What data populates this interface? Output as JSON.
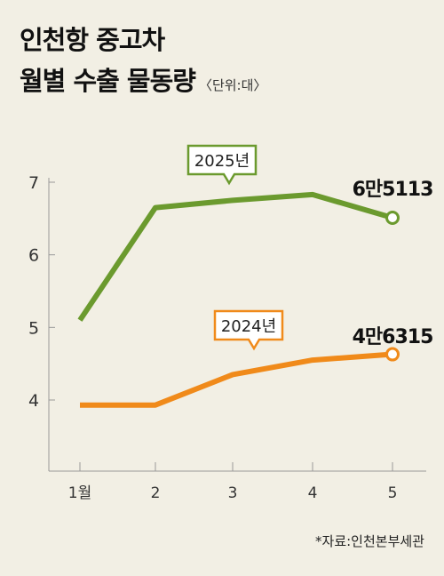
{
  "title_line1": "인천항 중고차",
  "title_line2": "월별 수출 물동량",
  "unit": "〈단위:대〉",
  "source": "*자료:인천본부세관",
  "colors": {
    "series_2025": "#6b9a2e",
    "series_2024": "#f08a1a",
    "axis": "#999999"
  },
  "chart_data": {
    "type": "line",
    "title": "인천항 중고차 월별 수출 물동량",
    "unit": "〈단위:대〉",
    "x": [
      "1월",
      "2",
      "3",
      "4",
      "5"
    ],
    "y_ticks": [
      "4",
      "5",
      "6",
      "7"
    ],
    "ylim": [
      3.5,
      7.1
    ],
    "grid": false,
    "series": [
      {
        "name": "2025년",
        "values": [
          5.1,
          6.65,
          6.75,
          6.83,
          6.51
        ],
        "end_label": "6만5113"
      },
      {
        "name": "2024년",
        "values": [
          3.93,
          3.93,
          4.35,
          4.55,
          4.63
        ],
        "end_label": "4만6315"
      }
    ]
  }
}
